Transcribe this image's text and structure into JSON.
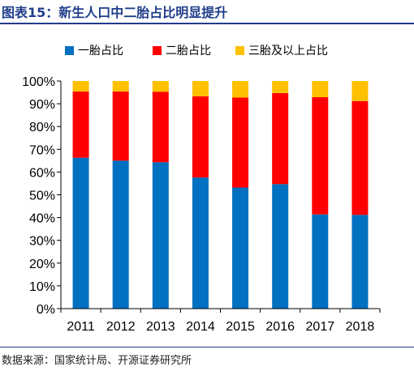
{
  "figure_title": "图表15：新生人口中二胎占比明显提升",
  "source_note": "数据来源：国家统计局、开源证券研究所",
  "chart_data": {
    "type": "bar",
    "stacked": true,
    "title": "",
    "xlabel": "",
    "ylabel": "",
    "ylim": [
      0,
      100
    ],
    "yticks": [
      "0%",
      "10%",
      "20%",
      "30%",
      "40%",
      "50%",
      "60%",
      "70%",
      "80%",
      "90%",
      "100%"
    ],
    "categories": [
      "2011",
      "2012",
      "2013",
      "2014",
      "2015",
      "2016",
      "2017",
      "2018"
    ],
    "series": [
      {
        "name": "一胎占比",
        "color": "#0070c0",
        "values": [
          66.3,
          65.0,
          64.3,
          57.6,
          53.2,
          54.7,
          41.4,
          41.2
        ]
      },
      {
        "name": "二胎占比",
        "color": "#ff0000",
        "values": [
          29.1,
          30.4,
          31.0,
          35.7,
          39.5,
          40.0,
          51.5,
          50.0
        ]
      },
      {
        "name": "三胎及以上占比",
        "color": "#ffc000",
        "values": [
          4.6,
          4.6,
          4.7,
          6.7,
          7.3,
          5.3,
          7.1,
          8.8
        ]
      }
    ],
    "legend_position": "top",
    "grid": false
  }
}
